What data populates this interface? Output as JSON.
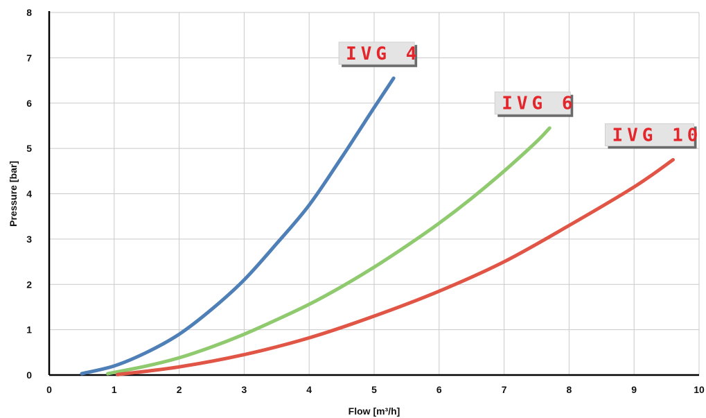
{
  "chart_data": {
    "type": "line",
    "xlabel": "Flow [m³/h]",
    "ylabel": "Pressure [bar]",
    "xlim": [
      0,
      10
    ],
    "ylim": [
      0,
      8
    ],
    "x_ticks": [
      "0",
      "1",
      "2",
      "3",
      "4",
      "5",
      "6",
      "7",
      "8",
      "9",
      "10"
    ],
    "y_ticks": [
      "0",
      "1",
      "2",
      "3",
      "4",
      "5",
      "6",
      "7",
      "8"
    ],
    "grid": true,
    "legend": "none",
    "series": [
      {
        "name": "IVG 4",
        "color": "#4e7fb6",
        "x": [
          0.5,
          1,
          1.5,
          2,
          2.5,
          3,
          3.5,
          4,
          4.5,
          5,
          5.3
        ],
        "y": [
          0.03,
          0.2,
          0.5,
          0.9,
          1.45,
          2.1,
          2.9,
          3.75,
          4.8,
          5.9,
          6.55
        ]
      },
      {
        "name": "IVG 6",
        "color": "#8fca6f",
        "x": [
          0.9,
          1.5,
          2,
          2.5,
          3,
          3.5,
          4,
          4.5,
          5,
          5.5,
          6,
          6.5,
          7,
          7.5,
          7.7
        ],
        "y": [
          0.03,
          0.2,
          0.38,
          0.62,
          0.9,
          1.22,
          1.56,
          1.95,
          2.38,
          2.85,
          3.35,
          3.9,
          4.5,
          5.15,
          5.45
        ]
      },
      {
        "name": "IVG 10",
        "color": "#e05545",
        "x": [
          1.05,
          2,
          3,
          4,
          5,
          6,
          7,
          8,
          9,
          9.6
        ],
        "y": [
          0.01,
          0.18,
          0.45,
          0.82,
          1.3,
          1.85,
          2.5,
          3.3,
          4.15,
          4.75
        ]
      }
    ]
  }
}
